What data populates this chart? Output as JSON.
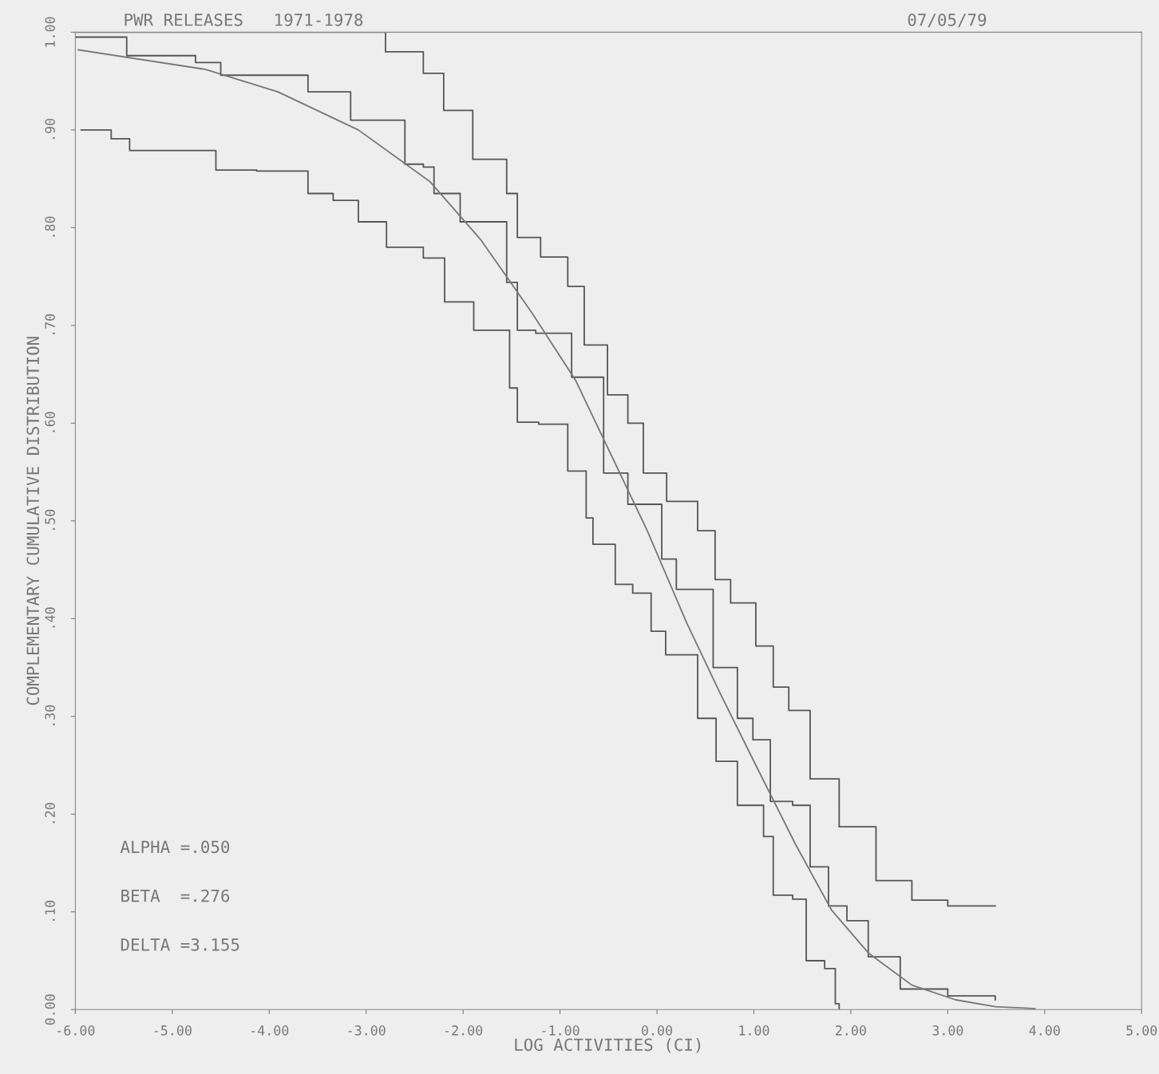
{
  "chart_data": {
    "type": "line",
    "title": "PWR RELEASES   1971-1978",
    "xlabel": "LOG ACTIVITIES (CI)",
    "ylabel": "COMPLEMENTARY CUMULATIVE DISTRIBUTION",
    "annotations": [
      "07/05/79",
      "ALPHA =.050",
      "BETA  =.276",
      "DELTA =3.155"
    ],
    "series": [
      {
        "type": "step",
        "color": "#555555",
        "x": [
          -6,
          -3.05,
          -2.8,
          -2.41,
          -2.2,
          -1.9,
          -1.55,
          -1.44,
          -1.2,
          -0.92,
          -0.75,
          -0.51,
          -0.3,
          -0.14,
          0.1,
          0.42,
          0.6,
          0.76,
          1.02,
          1.2,
          1.36,
          1.58,
          1.88,
          2.26,
          2.63,
          3.0,
          3.49
        ],
        "values": [
          1.0,
          1.0,
          0.98,
          0.958,
          0.92,
          0.87,
          0.835,
          0.79,
          0.77,
          0.74,
          0.68,
          0.629,
          0.6,
          0.549,
          0.52,
          0.49,
          0.44,
          0.416,
          0.372,
          0.33,
          0.306,
          0.236,
          0.187,
          0.132,
          0.112,
          0.106,
          0.106
        ]
      },
      {
        "type": "step",
        "color": "#555555",
        "x": [
          -6,
          -5.47,
          -4.76,
          -4.5,
          -3.6,
          -3.16,
          -2.6,
          -2.41,
          -2.3,
          -2.03,
          -1.55,
          -1.44,
          -1.25,
          -0.88,
          -0.55,
          -0.3,
          0.05,
          0.2,
          0.58,
          0.83,
          0.99,
          1.17,
          1.4,
          1.58,
          1.77,
          1.96,
          2.18,
          2.51,
          3.0,
          3.49
        ],
        "values": [
          0.995,
          0.976,
          0.969,
          0.956,
          0.939,
          0.91,
          0.865,
          0.862,
          0.835,
          0.806,
          0.744,
          0.695,
          0.692,
          0.647,
          0.549,
          0.517,
          0.461,
          0.43,
          0.35,
          0.298,
          0.276,
          0.213,
          0.209,
          0.146,
          0.106,
          0.091,
          0.054,
          0.021,
          0.014,
          0.01
        ]
      },
      {
        "type": "step",
        "color": "#555555",
        "x": [
          -5.94,
          -5.63,
          -5.44,
          -4.76,
          -4.55,
          -4.13,
          -3.6,
          -3.34,
          -3.08,
          -2.79,
          -2.41,
          -2.19,
          -1.89,
          -1.52,
          -1.44,
          -1.22,
          -0.92,
          -0.73,
          -0.66,
          -0.43,
          -0.25,
          -0.06,
          0.09,
          0.42,
          0.61,
          0.83,
          1.1,
          1.2,
          1.4,
          1.54,
          1.73,
          1.84,
          1.88
        ],
        "values": [
          0.9,
          0.891,
          0.879,
          0.879,
          0.859,
          0.858,
          0.835,
          0.828,
          0.806,
          0.78,
          0.769,
          0.724,
          0.695,
          0.636,
          0.601,
          0.599,
          0.551,
          0.503,
          0.476,
          0.435,
          0.426,
          0.387,
          0.363,
          0.298,
          0.254,
          0.209,
          0.177,
          0.117,
          0.113,
          0.05,
          0.042,
          0.006,
          0.0
        ]
      },
      {
        "color": "#777777",
        "x": [
          -5.97,
          -4.66,
          -3.91,
          -3.08,
          -2.34,
          -1.82,
          -1.29,
          -0.84,
          -0.1,
          0.31,
          0.65,
          1.02,
          1.43,
          1.8,
          2.18,
          2.63,
          3.08,
          3.49,
          3.9
        ],
        "values": [
          0.982,
          0.962,
          0.939,
          0.9,
          0.847,
          0.788,
          0.713,
          0.644,
          0.49,
          0.395,
          0.324,
          0.25,
          0.169,
          0.102,
          0.058,
          0.025,
          0.01,
          0.003,
          0.001
        ]
      }
    ],
    "xlim": [
      -6,
      5
    ],
    "ylim": [
      0,
      1
    ],
    "xticks": [
      {
        "value": -6,
        "label": "-6.00"
      },
      {
        "value": -5,
        "label": "-5.00"
      },
      {
        "value": -4,
        "label": "-4.00"
      },
      {
        "value": -3,
        "label": "-3.00"
      },
      {
        "value": -2,
        "label": "-2.00"
      },
      {
        "value": -1,
        "label": "-1.00"
      },
      {
        "value": 0,
        "label": "0.00"
      },
      {
        "value": 1,
        "label": "1.00"
      },
      {
        "value": 2,
        "label": "2.00"
      },
      {
        "value": 3,
        "label": "3.00"
      },
      {
        "value": 4,
        "label": "4.00"
      },
      {
        "value": 5,
        "label": "5.00"
      }
    ],
    "yticks": [
      {
        "value": 0,
        "label": "0.00"
      },
      {
        "value": 0.1,
        "label": ".10"
      },
      {
        "value": 0.2,
        "label": ".20"
      },
      {
        "value": 0.3,
        "label": ".30"
      },
      {
        "value": 0.4,
        "label": ".40"
      },
      {
        "value": 0.5,
        "label": ".50"
      },
      {
        "value": 0.6,
        "label": ".60"
      },
      {
        "value": 0.7,
        "label": ".70"
      },
      {
        "value": 0.8,
        "label": ".80"
      },
      {
        "value": 0.9,
        "label": ".90"
      },
      {
        "value": 1,
        "label": "1.00"
      }
    ],
    "grid": false,
    "legend": false
  }
}
